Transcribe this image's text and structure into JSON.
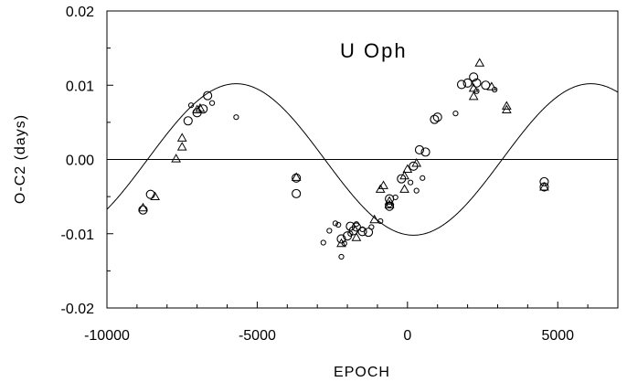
{
  "chart_data": {
    "type": "scatter",
    "title": "U Oph",
    "xlabel": "EPOCH",
    "ylabel": "O-C2 (days)",
    "xlim": [
      -10000,
      7000
    ],
    "ylim": [
      -0.02,
      0.02
    ],
    "x_ticks": [
      -10000,
      -5000,
      0,
      5000
    ],
    "x_tick_labels": [
      "-10000",
      "-5000",
      "0",
      "5000"
    ],
    "y_ticks": [
      -0.02,
      -0.01,
      0.0,
      0.01,
      0.02
    ],
    "y_tick_labels": [
      "-0.02",
      "-0.01",
      "0.00",
      "0.01",
      "0.02"
    ],
    "grid": false,
    "reference_line_y": 0,
    "fit_curve": {
      "type": "sinusoid",
      "amplitude": 0.0102,
      "period": 11800,
      "peak_epoch": -5700
    },
    "series": [
      {
        "marker": "circle-large",
        "x": [
          -8800,
          -8550,
          -7300,
          -7000,
          -6800,
          -6650,
          -3700,
          -3700,
          -2200,
          -2000,
          -1900,
          -1800,
          -1700,
          -1500,
          -1300,
          -600,
          -600,
          -200,
          200,
          400,
          600,
          900,
          1000,
          1800,
          2000,
          2200,
          2300,
          2600,
          4550,
          4550
        ],
        "y": [
          -0.0068,
          -0.0047,
          0.0052,
          0.0063,
          0.0068,
          0.0086,
          -0.0025,
          -0.0046,
          -0.0107,
          -0.0103,
          -0.009,
          -0.0096,
          -0.0091,
          -0.0097,
          -0.0098,
          -0.0053,
          -0.0063,
          -0.0026,
          -0.0009,
          0.0013,
          0.001,
          0.0054,
          0.0057,
          0.0101,
          0.0103,
          0.0111,
          0.0103,
          0.01,
          -0.003,
          -0.0037
        ]
      },
      {
        "marker": "circle-small",
        "x": [
          -7200,
          -6500,
          -5700,
          -2800,
          -2600,
          -2400,
          -2300,
          -2200,
          -2100,
          -1900,
          -1700,
          -1500,
          -1200,
          -900,
          -600,
          -400,
          100,
          300,
          500,
          1600,
          2300,
          2900
        ],
        "y": [
          0.0073,
          0.0076,
          0.0057,
          -0.0112,
          -0.0096,
          -0.0086,
          -0.0088,
          -0.0131,
          -0.0113,
          -0.01,
          -0.0087,
          -0.0094,
          -0.0091,
          -0.0083,
          -0.0061,
          -0.0051,
          -0.0031,
          -0.0042,
          -0.0025,
          0.0062,
          0.0092,
          0.0094
        ]
      },
      {
        "marker": "triangle",
        "x": [
          -8800,
          -8400,
          -7700,
          -7500,
          -7500,
          -7000,
          -6900,
          -3700,
          -2200,
          -1700,
          -1100,
          -900,
          -800,
          -600,
          -600,
          -100,
          -100,
          0,
          300,
          2200,
          2200,
          2400,
          2800,
          3300,
          3300,
          4550
        ],
        "y": [
          -0.0065,
          -0.005,
          0.0001,
          0.0017,
          0.0029,
          0.0067,
          0.0069,
          -0.0024,
          -0.0113,
          -0.0105,
          -0.0081,
          -0.004,
          -0.0035,
          -0.0056,
          -0.0061,
          -0.0022,
          -0.004,
          -0.0013,
          -0.0005,
          0.0096,
          0.0085,
          0.013,
          0.0098,
          0.0072,
          0.0067,
          -0.0037
        ]
      }
    ]
  }
}
